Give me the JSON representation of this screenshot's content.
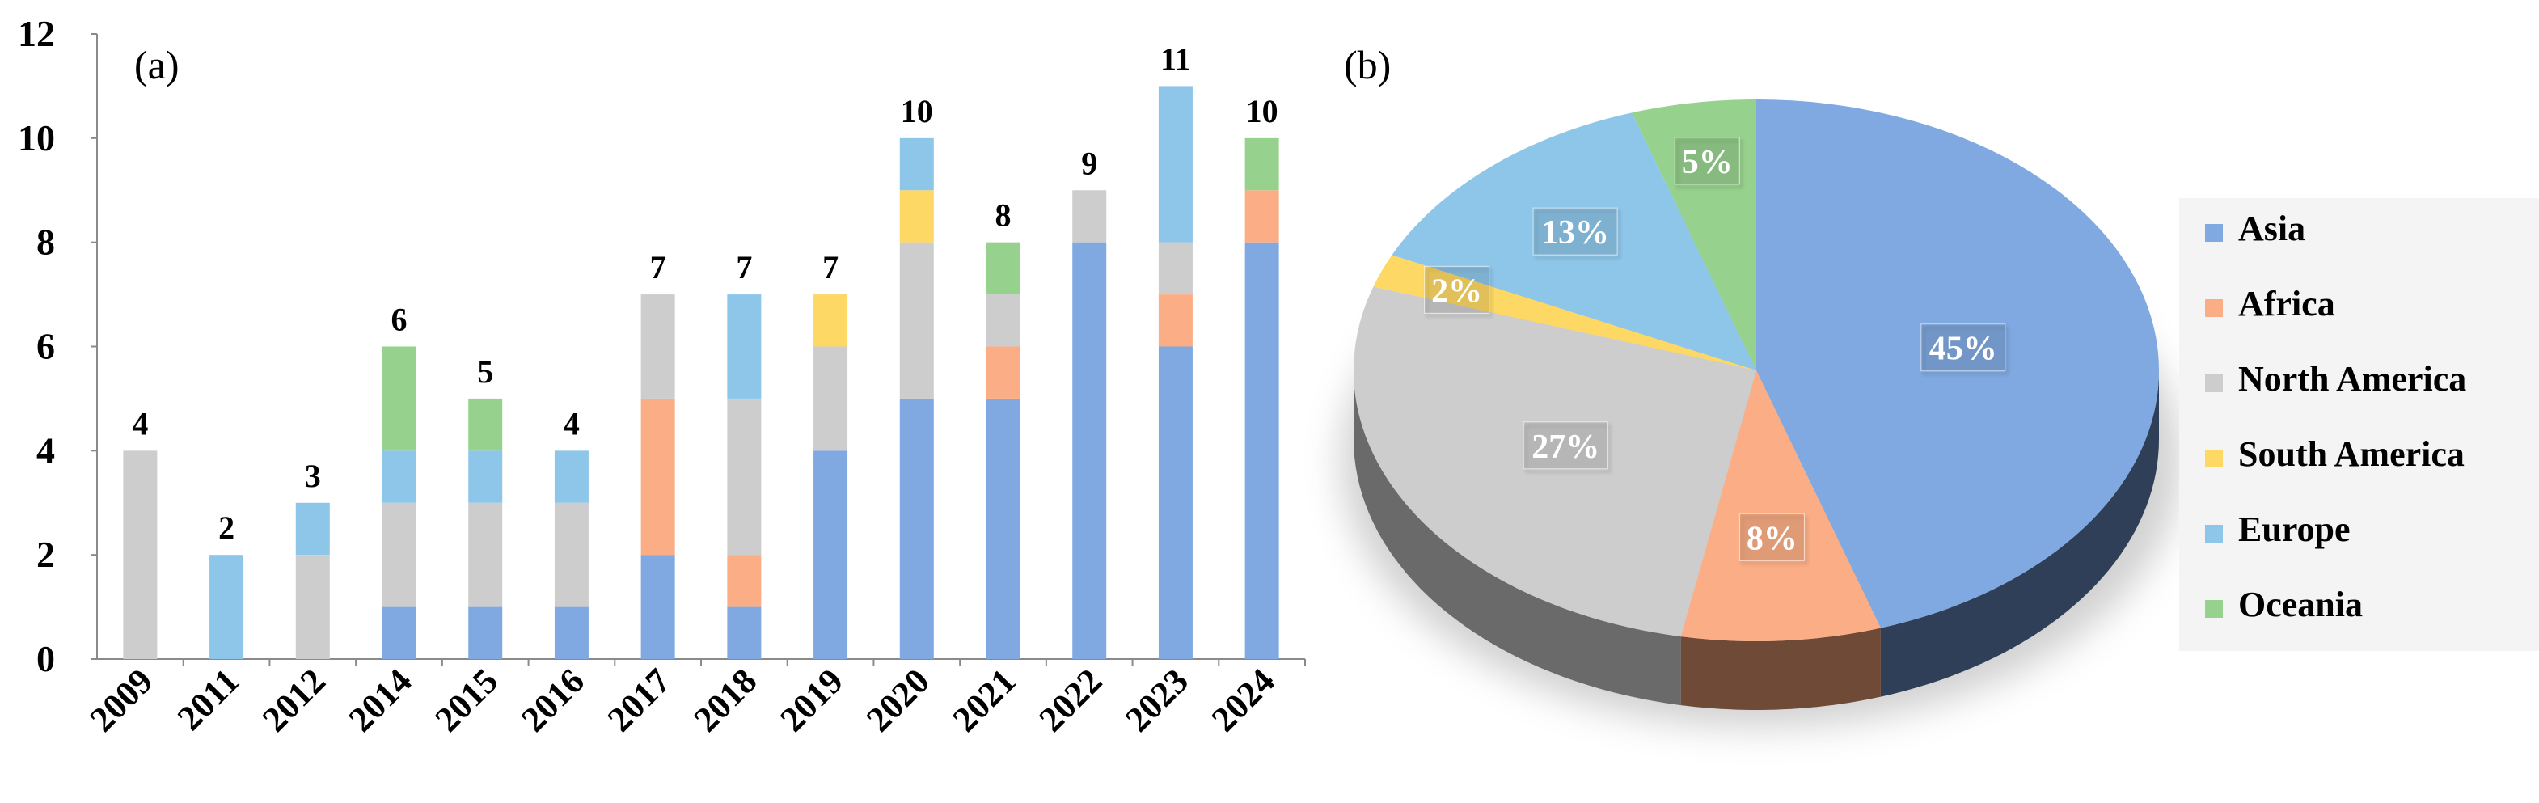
{
  "chart_data": [
    {
      "type": "bar",
      "stacked": true,
      "panel_label": "(a)",
      "title": "",
      "xlabel": "",
      "ylabel": "",
      "ylim": [
        0,
        12
      ],
      "yticks": [
        0,
        2,
        4,
        6,
        8,
        10,
        12
      ],
      "grid": false,
      "categories": [
        "2009",
        "2011",
        "2012",
        "2014",
        "2015",
        "2016",
        "2017",
        "2018",
        "2019",
        "2020",
        "2021",
        "2022",
        "2023",
        "2024"
      ],
      "totals": [
        4,
        2,
        3,
        6,
        5,
        4,
        7,
        7,
        7,
        10,
        8,
        9,
        11,
        10
      ],
      "series": [
        {
          "name": "Asia",
          "color": "#7fa9e0",
          "values": [
            0,
            0,
            0,
            1,
            1,
            1,
            2,
            1,
            4,
            5,
            5,
            8,
            6,
            8
          ]
        },
        {
          "name": "Africa",
          "color": "#fbae85",
          "values": [
            0,
            0,
            0,
            0,
            0,
            0,
            3,
            1,
            0,
            0,
            1,
            0,
            1,
            1
          ]
        },
        {
          "name": "North America",
          "color": "#cdcdcd",
          "values": [
            4,
            0,
            2,
            2,
            2,
            2,
            2,
            3,
            2,
            3,
            1,
            1,
            1,
            0
          ]
        },
        {
          "name": "South America",
          "color": "#fdd865",
          "values": [
            0,
            0,
            0,
            0,
            0,
            0,
            0,
            0,
            1,
            1,
            0,
            0,
            0,
            0
          ]
        },
        {
          "name": "Europe",
          "color": "#8ec6ea",
          "values": [
            0,
            2,
            1,
            1,
            1,
            1,
            0,
            2,
            0,
            1,
            0,
            0,
            3,
            0
          ]
        },
        {
          "name": "Oceania",
          "color": "#96d18d",
          "values": [
            0,
            0,
            0,
            2,
            1,
            0,
            0,
            0,
            0,
            0,
            1,
            0,
            0,
            1
          ]
        }
      ]
    },
    {
      "type": "pie",
      "panel_label": "(b)",
      "title": "",
      "legend_position": "right",
      "slices": [
        {
          "name": "Asia",
          "value": 45,
          "label": "45%",
          "color": "#7fa9e0",
          "side": "#2e3f57"
        },
        {
          "name": "Africa",
          "value": 8,
          "label": "8%",
          "color": "#fbae85",
          "side": "#6e4a37"
        },
        {
          "name": "North America",
          "value": 27,
          "label": "27%",
          "color": "#cdcdcd",
          "side": "#6a6a6a"
        },
        {
          "name": "South America",
          "value": 2,
          "label": "2%",
          "color": "#fdd865",
          "side": "#7a6830"
        },
        {
          "name": "Europe",
          "value": 13,
          "label": "13%",
          "color": "#8ec6ea",
          "side": "#3e5a6c"
        },
        {
          "name": "Oceania",
          "value": 5,
          "label": "5%",
          "color": "#96d18d",
          "side": "#45603f"
        }
      ],
      "legend": [
        "Asia",
        "Africa",
        "North America",
        "South America",
        "Europe",
        "Oceania"
      ]
    }
  ]
}
